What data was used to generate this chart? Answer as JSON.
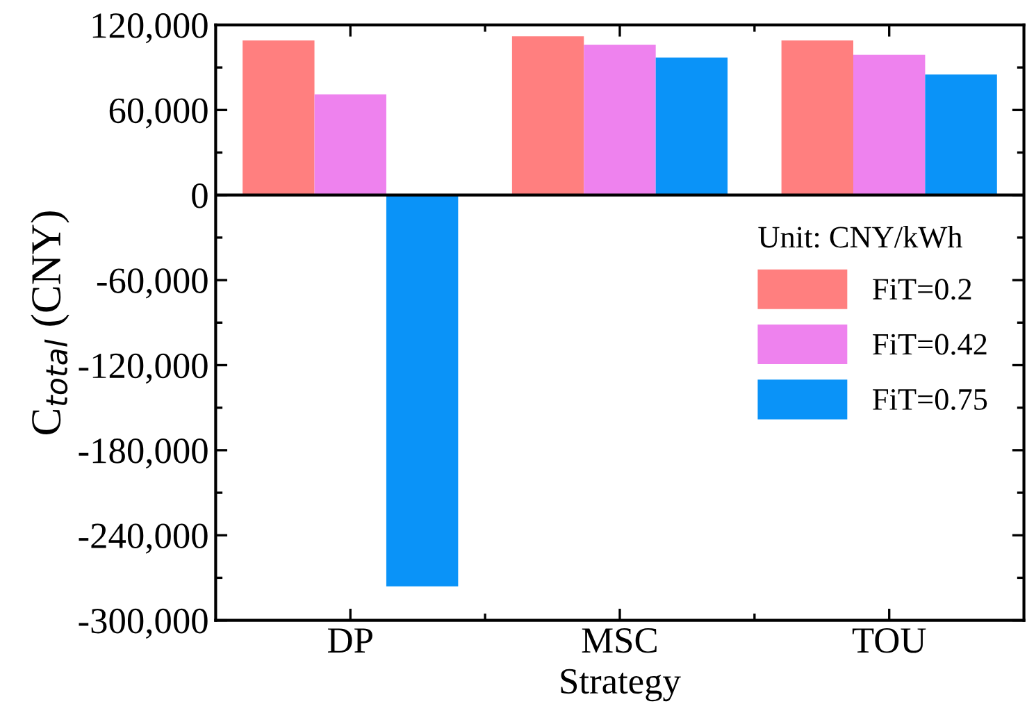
{
  "chart_data": {
    "type": "bar",
    "xlabel": "Strategy",
    "ylabel": "C$_{total}$ (CNY)",
    "legend_title": "Unit: CNY/kWh",
    "categories": [
      "DP",
      "MSC",
      "TOU"
    ],
    "series": [
      {
        "name": "FiT=0.2",
        "color": "#ff7f7f",
        "values": [
          109000,
          112000,
          109000
        ]
      },
      {
        "name": "FiT=0.42",
        "color": "#ee82ee",
        "values": [
          71000,
          106000,
          99000
        ]
      },
      {
        "name": "FiT=0.75",
        "color": "#0a93f8",
        "values": [
          -276000,
          97000,
          85000
        ]
      }
    ],
    "ylim": [
      -300000,
      120000
    ],
    "yticks": [
      {
        "value": -300000,
        "label": "-300,000"
      },
      {
        "value": -240000,
        "label": "-240,000"
      },
      {
        "value": -180000,
        "label": "-180,000"
      },
      {
        "value": -120000,
        "label": "-120,000"
      },
      {
        "value": -60000,
        "label": "-60,000"
      },
      0,
      {
        "value": 60000,
        "label": "60,000"
      },
      {
        "value": 120000,
        "label": "120,000"
      }
    ],
    "ref_lines": [
      {
        "axis": "y",
        "value": 0,
        "color": "#000000"
      }
    ],
    "legend": "right",
    "grid": false
  }
}
